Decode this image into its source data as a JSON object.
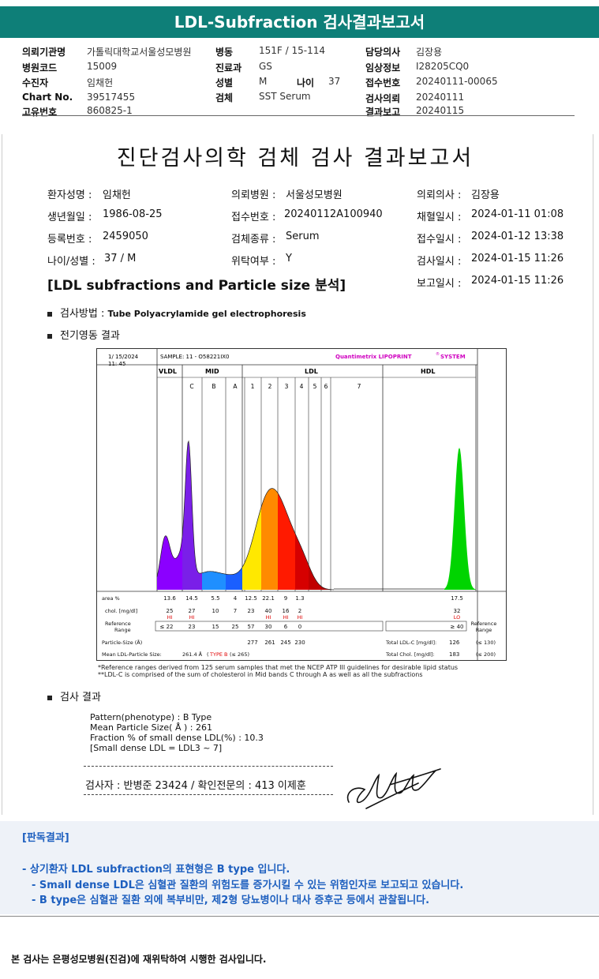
{
  "title": "LDL-Subfraction 검사결과보고서",
  "header_info": [
    {
      "label": "의뢰기관명",
      "value": "가톨릭대학교서울성모병원"
    },
    {
      "label": "병원코드",
      "value": "15009"
    },
    {
      "label": "수진자",
      "value": "임채헌"
    },
    {
      "label": "Chart No.",
      "value": "39517455"
    },
    {
      "label": "고유번호",
      "value": "860825-1"
    },
    {
      "label": "병동",
      "value": "151F / 15-114"
    },
    {
      "label": "진료과",
      "value": "GS"
    },
    {
      "label": "성별",
      "value": "M"
    },
    {
      "label": "나이",
      "value": "37"
    },
    {
      "label": "검체",
      "value": "SST Serum"
    },
    {
      "label": "담당의사",
      "value": "김장용"
    },
    {
      "label": "임상정보",
      "value": "I28205CQ0"
    },
    {
      "label": "접수번호",
      "value": "20240111-00065"
    },
    {
      "label": "검사의뢰",
      "value": "20240111"
    },
    {
      "label": "결과보고",
      "value": "20240115"
    }
  ],
  "report": {
    "title": "진단검사의학 검체 검사 결과보고서",
    "fields": [
      {
        "label": "환자성명 :",
        "value": "임채헌"
      },
      {
        "label": "생년월일 :",
        "value": "1986-08-25"
      },
      {
        "label": "등록번호 :",
        "value": "2459050"
      },
      {
        "label": "나이/성별 :",
        "value": "37 / M"
      },
      {
        "label": "의뢰병원 :",
        "value": "서울성모병원"
      },
      {
        "label": "접수번호 :",
        "value": "20240112A100940"
      },
      {
        "label": "검체종류 :",
        "value": "Serum"
      },
      {
        "label": "위탁여부 :",
        "value": "Y"
      },
      {
        "label": "의뢰의사 :",
        "value": "김장용"
      },
      {
        "label": "채혈일시 :",
        "value": "2024-01-11 01:08"
      },
      {
        "label": "접수일시 :",
        "value": "2024-01-12 13:38"
      },
      {
        "label": "검사일시 :",
        "value": "2024-01-15 11:26"
      },
      {
        "label": "보고일시 :",
        "value": "2024-01-15 11:26"
      }
    ],
    "section_title": "[LDL subfractions and Particle size 분석]",
    "method_label": "검사방법 :",
    "method_value": "Tube Polyacrylamide gel electrophoresis",
    "electro_label": "전기영동 결과",
    "results_label": "검사 결과",
    "results_lines": [
      "Pattern(phenotype) : B Type",
      "Mean Particle Size( Å ) : 261",
      "Fraction % of small dense LDL(%) : 10.3",
      "[Small dense LDL = LDL3 ~ 7]"
    ],
    "inspector": "검사자 : 반병준  23424  /  확인전문의 : 413  이제훈"
  },
  "chart_data": {
    "type": "area",
    "date": "1/ 15/2024",
    "time": "11: 45",
    "sample": "SAMPLE:   11 - O58221IX0",
    "brand": "Quantimetrix LIPOPRINT",
    "brand_suffix": "SYSTEM",
    "regions": [
      "VLDL",
      "MID",
      "LDL",
      "HDL"
    ],
    "bands": [
      "C",
      "B",
      "A",
      "1",
      "2",
      "3",
      "4",
      "5",
      "6",
      "7"
    ],
    "band_colors": [
      "#8b00ff",
      "#7a1fe8",
      "#1f8fff",
      "#1a5fff",
      "#ffe800",
      "#ff8a00",
      "#ff1a00",
      "#d60000",
      "#c00000",
      "#b00000",
      "#00d400"
    ],
    "fractions": [
      "VLDL",
      "C",
      "B",
      "A",
      "LDL1",
      "LDL2",
      "LDL3",
      "LDL4",
      "LDL5",
      "LDL6",
      "LDL7",
      "HDL"
    ],
    "area_pct": [
      13.6,
      14.5,
      5.5,
      4.0,
      12.5,
      22.1,
      9.0,
      1.3,
      null,
      null,
      null,
      17.5
    ],
    "area_label": "area %",
    "chol_label": "chol. [mg/dl]",
    "chol": [
      25,
      27,
      10,
      7,
      23,
      40,
      16,
      2,
      null,
      null,
      null,
      32
    ],
    "chol_flags": [
      "HI",
      "HI",
      "",
      "",
      "",
      "HI",
      "HI",
      "HI",
      "",
      "",
      "",
      "LO"
    ],
    "reference_label": "Reference Range",
    "reference": [
      "≤ 22",
      "23",
      "15",
      "25",
      "57",
      "30",
      "6",
      "0",
      "",
      "",
      "",
      "≥ 40"
    ],
    "particle_size_label": "Particle-Size (Å)",
    "particle_sizes": [
      "277",
      "261",
      "245",
      "230"
    ],
    "mean_size_label": "Mean LDL-Particle Size:",
    "mean_size": "261.4 Å",
    "mean_type": "TYPE B",
    "mean_ref": "(≤ 265)",
    "total_ldl_label": "Total LDL-C [mg/dl]:",
    "total_ldl": "126",
    "total_ldl_ref": "(≤ 130)",
    "total_chol_label": "Total Chol. [mg/dl]:",
    "total_chol": "183",
    "total_chol_ref": "(≤ 200)",
    "footnote1": "*Reference ranges derived from 125 serum samples that met the NCEP ATP III guidelines for desirable lipid status",
    "footnote2": "**LDL-C is comprised of the sum of cholesterol in Mid bands C through A as well as all the subfractions"
  },
  "judgement": {
    "title": "[판독결과]",
    "lines": [
      "- 상기환자 LDL subfraction의 표현형은 B type 입니다.",
      "-  Small dense LDL은 심혈관 질환의 위험도를 증가시킬 수 있는 위험인자로 보고되고 있습니다.",
      "-  B type은 심혈관 질환 외에 복부비만, 제2형 당뇨병이나 대사 증후군 등에서 관찰됩니다."
    ]
  },
  "footer": "본 검사는 은평성모병원(진검)에 재위탁하여 시행한 검사입니다."
}
